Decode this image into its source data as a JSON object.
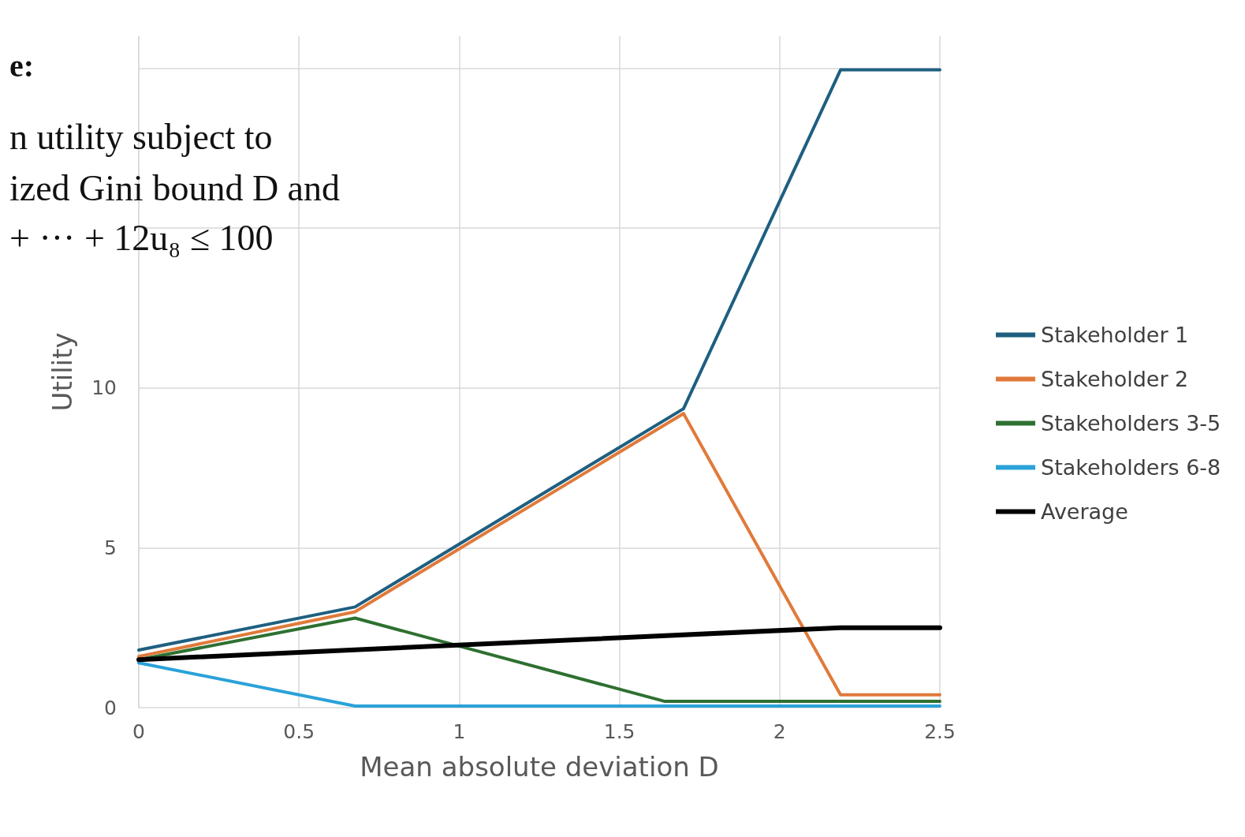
{
  "chart_data": {
    "type": "line",
    "xlabel": "Mean absolute deviation D",
    "ylabel": "Utility",
    "annotations": [
      "e:",
      "n utility subject to",
      "ized Gini bound D and",
      "+ ··· + 12u₈ ≤ 100"
    ],
    "xlim": [
      0,
      2.5
    ],
    "xticks": [
      0,
      0.5,
      1,
      1.5,
      2,
      2.5
    ],
    "ylim": [
      0,
      21
    ],
    "yticks": [
      0,
      5,
      10,
      {
        "value": 15,
        "label": null
      },
      {
        "value": 20,
        "label": null
      }
    ],
    "grid": true,
    "legend": "right",
    "marker": "none",
    "line_style": "solid",
    "series": [
      {
        "name": "Stakeholder 1",
        "color": "#1f5f80",
        "x": [
          0,
          0.675,
          1.7,
          2.19,
          2.5
        ],
        "values": [
          1.8,
          3.15,
          9.35,
          19.95,
          19.95
        ]
      },
      {
        "name": "Stakeholder 2",
        "color": "#e07a3a",
        "x": [
          0,
          0.675,
          1.7,
          2.19,
          2.5
        ],
        "values": [
          1.6,
          3.0,
          9.2,
          0.4,
          0.4
        ]
      },
      {
        "name": "Stakeholders 3-5",
        "color": "#2e7031",
        "x": [
          0,
          0.675,
          1.64,
          2.5
        ],
        "values": [
          1.5,
          2.8,
          0.2,
          0.2
        ]
      },
      {
        "name": "Stakeholders 6-8",
        "color": "#2aa2d8",
        "x": [
          0,
          0.675,
          2.5
        ],
        "values": [
          1.4,
          0.05,
          0.05
        ]
      },
      {
        "name": "Average",
        "color": "#000000",
        "x": [
          0,
          2.19,
          2.5
        ],
        "values": [
          1.5,
          2.5,
          2.5
        ]
      }
    ]
  }
}
